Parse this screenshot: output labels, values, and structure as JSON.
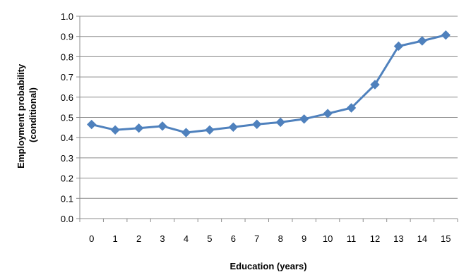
{
  "chart_data": {
    "type": "line",
    "x": [
      0,
      1,
      2,
      3,
      4,
      5,
      6,
      7,
      8,
      9,
      10,
      11,
      12,
      13,
      14,
      15
    ],
    "series": [
      {
        "values": [
          0.465,
          0.438,
          0.447,
          0.457,
          0.425,
          0.438,
          0.452,
          0.466,
          0.476,
          0.492,
          0.519,
          0.547,
          0.662,
          0.852,
          0.878,
          0.907
        ],
        "color": "#4F81BD",
        "marker": "diamond"
      }
    ],
    "xlabel": "Education (years)",
    "ylabel": "Employment probability (conditional)",
    "ylabel_lines": [
      "Employment probability",
      "(conditional)"
    ],
    "ylim": [
      0,
      1
    ],
    "yticks": [
      "0.0",
      "0.1",
      "0.2",
      "0.3",
      "0.4",
      "0.5",
      "0.6",
      "0.7",
      "0.8",
      "0.9",
      "1.0"
    ],
    "xticks": [
      "0",
      "1",
      "2",
      "3",
      "4",
      "5",
      "6",
      "7",
      "8",
      "9",
      "10",
      "11",
      "12",
      "13",
      "14",
      "15"
    ],
    "grid": true
  }
}
